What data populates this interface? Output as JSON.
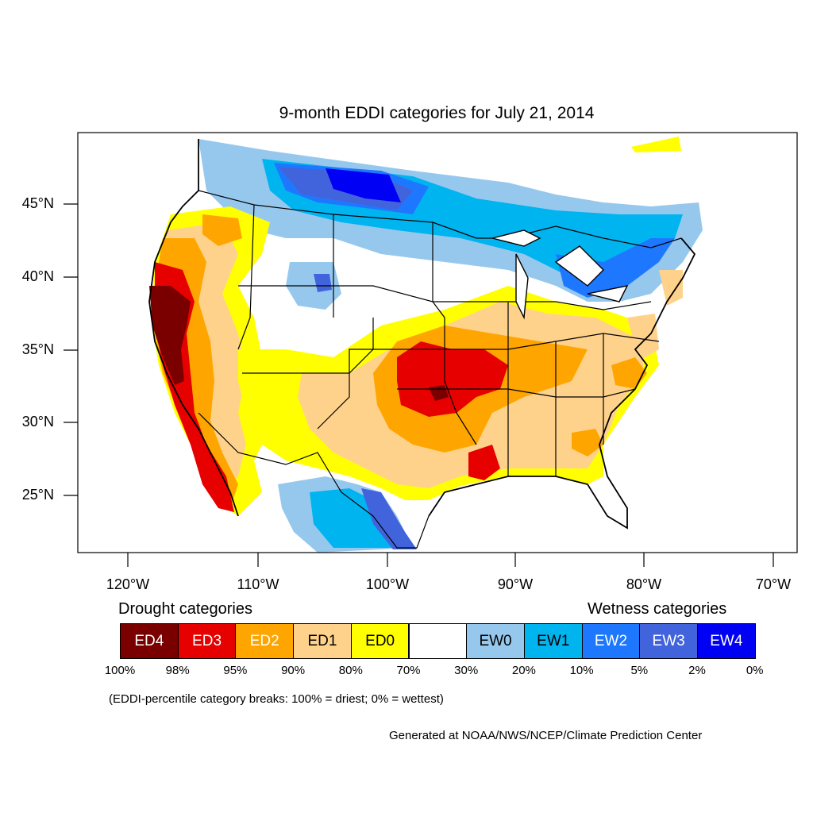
{
  "title": "9-month EDDI categories for July 21, 2014",
  "lat_labels": [
    "45°N",
    "40°N",
    "35°N",
    "30°N",
    "25°N"
  ],
  "lon_labels": [
    "120°W",
    "110°W",
    "100°W",
    "90°W",
    "80°W",
    "70°W"
  ],
  "legend": {
    "drought_heading": "Drought categories",
    "wetness_heading": "Wetness categories",
    "categories": [
      {
        "label": "ED4",
        "color": "#7a0000",
        "text_color": "#ffffff"
      },
      {
        "label": "ED3",
        "color": "#e60000",
        "text_color": "#ffffff"
      },
      {
        "label": "ED2",
        "color": "#ffa500",
        "text_color": "#ffffff"
      },
      {
        "label": "ED1",
        "color": "#ffd28c",
        "text_color": "#000000"
      },
      {
        "label": "ED0",
        "color": "#ffff00",
        "text_color": "#000000"
      },
      {
        "label": "",
        "color": "#ffffff",
        "text_color": "#000000"
      },
      {
        "label": "EW0",
        "color": "#96c8ee",
        "text_color": "#000000"
      },
      {
        "label": "EW1",
        "color": "#00b4f0",
        "text_color": "#000000"
      },
      {
        "label": "EW2",
        "color": "#1e78ff",
        "text_color": "#ffffff"
      },
      {
        "label": "EW3",
        "color": "#4164dc",
        "text_color": "#ffffff"
      },
      {
        "label": "EW4",
        "color": "#0000f5",
        "text_color": "#ffffff"
      }
    ],
    "breaks": [
      "100%",
      "98%",
      "95%",
      "90%",
      "80%",
      "70%",
      "30%",
      "20%",
      "10%",
      "5%",
      "2%",
      "0%"
    ]
  },
  "note": "(EDDI-percentile category breaks: 100% = driest; 0% = wettest)",
  "credit": "Generated at NOAA/NWS/NCEP/Climate Prediction Center"
}
